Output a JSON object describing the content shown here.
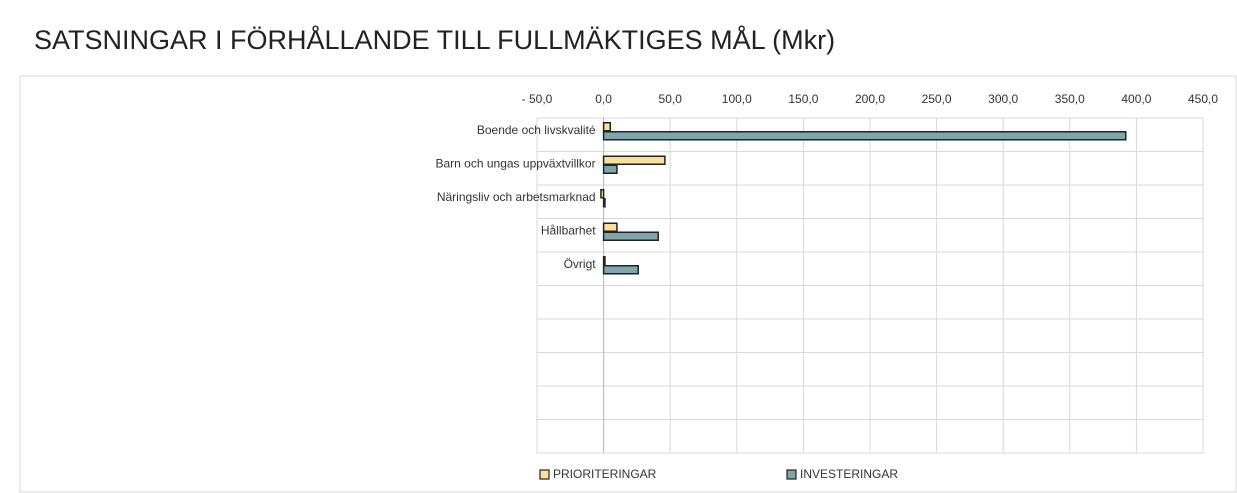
{
  "chart_data": {
    "type": "bar",
    "orientation": "horizontal",
    "title": "SATSNINGAR I FÖRHÅLLANDE TILL FULLMÄKTIGES MÅL (Mkr)",
    "categories": [
      "Boende och livskvalité",
      "Barn och ungas uppväxtvillkor",
      "Näringsliv och arbetsmarknad",
      "Hållbarhet",
      "Övrigt",
      null,
      null,
      null,
      null,
      null
    ],
    "series": [
      {
        "name": "PRIORITERINGAR",
        "color": "#fbe09c",
        "values": [
          5,
          46,
          -2,
          10,
          1,
          null,
          null,
          null,
          null,
          null
        ]
      },
      {
        "name": "INVESTERINGAR",
        "color": "#7fa6a8",
        "values": [
          392,
          10,
          1,
          41,
          26,
          null,
          null,
          null,
          null,
          null
        ]
      }
    ],
    "xlim": [
      -50,
      450
    ],
    "xticks": [
      {
        "value": -50,
        "label": "- 50,0"
      },
      {
        "value": 0,
        "label": "0,0"
      },
      {
        "value": 50,
        "label": "50,0"
      },
      {
        "value": 100,
        "label": "100,0"
      },
      {
        "value": 150,
        "label": "150,0"
      },
      {
        "value": 200,
        "label": "200,0"
      },
      {
        "value": 250,
        "label": "250,0"
      },
      {
        "value": 300,
        "label": "300,0"
      },
      {
        "value": 350,
        "label": "350,0"
      },
      {
        "value": 400,
        "label": "400,0"
      },
      {
        "value": 450,
        "label": "450,0"
      }
    ],
    "grid": true,
    "legend": "bottom"
  }
}
